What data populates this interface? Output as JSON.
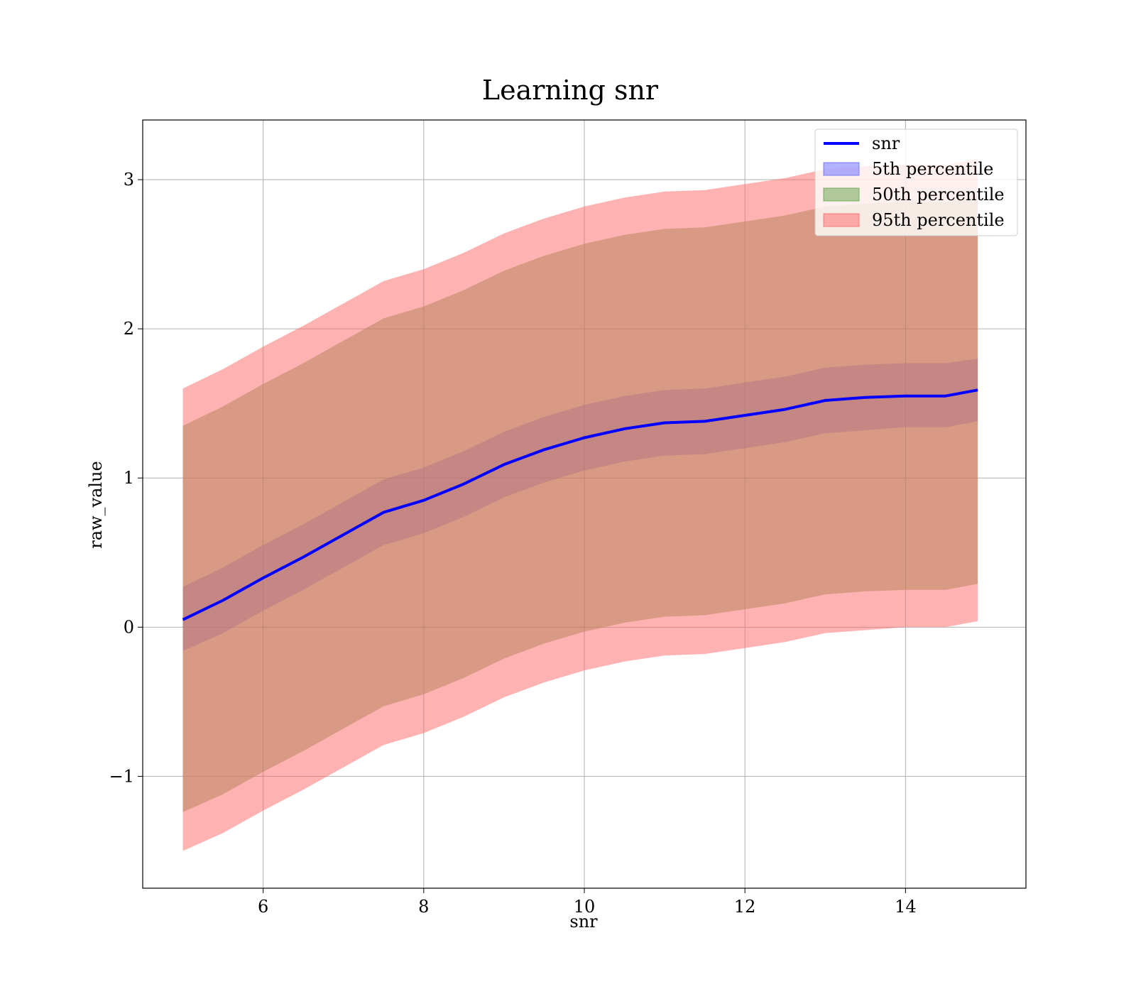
{
  "chart_data": {
    "type": "line",
    "title": "Learning snr",
    "xlabel": "snr",
    "ylabel": "raw_value",
    "xlim": [
      4.5,
      15.5
    ],
    "ylim": [
      -1.75,
      3.4
    ],
    "grid": true,
    "legend_position": "upper right",
    "x_ticks": [
      6,
      8,
      10,
      12,
      14
    ],
    "x_tick_labels": [
      "6",
      "8",
      "10",
      "12",
      "14"
    ],
    "y_ticks": [
      -1,
      0,
      1,
      2,
      3
    ],
    "y_tick_labels": [
      "−1",
      "0",
      "1",
      "2",
      "3"
    ],
    "x": [
      5.0,
      5.5,
      6.0,
      6.5,
      7.0,
      7.5,
      8.0,
      8.5,
      9.0,
      9.5,
      10.0,
      10.5,
      11.0,
      11.5,
      12.0,
      12.5,
      13.0,
      13.5,
      14.0,
      14.5,
      14.9
    ],
    "series": [
      {
        "name": "snr",
        "kind": "line",
        "color": "#0000ff",
        "values": [
          0.05,
          0.18,
          0.33,
          0.47,
          0.62,
          0.77,
          0.85,
          0.96,
          1.09,
          1.19,
          1.27,
          1.33,
          1.37,
          1.38,
          1.42,
          1.46,
          1.52,
          1.54,
          1.55,
          1.55,
          1.59
        ]
      },
      {
        "name": "5th percentile",
        "kind": "band",
        "color": "#6666ff",
        "lower": [
          -0.16,
          -0.04,
          0.11,
          0.25,
          0.4,
          0.55,
          0.63,
          0.74,
          0.87,
          0.97,
          1.05,
          1.11,
          1.15,
          1.16,
          1.2,
          1.24,
          1.3,
          1.32,
          1.34,
          1.34,
          1.38
        ],
        "upper": [
          0.27,
          0.4,
          0.55,
          0.69,
          0.84,
          0.99,
          1.07,
          1.18,
          1.31,
          1.41,
          1.49,
          1.55,
          1.59,
          1.6,
          1.64,
          1.68,
          1.74,
          1.76,
          1.77,
          1.77,
          1.8
        ]
      },
      {
        "name": "50th percentile",
        "kind": "band",
        "color": "#62a048",
        "lower": [
          -1.24,
          -1.12,
          -0.97,
          -0.83,
          -0.68,
          -0.53,
          -0.45,
          -0.34,
          -0.21,
          -0.11,
          -0.03,
          0.03,
          0.07,
          0.08,
          0.12,
          0.16,
          0.22,
          0.24,
          0.25,
          0.25,
          0.29
        ],
        "upper": [
          1.35,
          1.48,
          1.63,
          1.77,
          1.92,
          2.07,
          2.15,
          2.26,
          2.39,
          2.49,
          2.57,
          2.63,
          2.67,
          2.68,
          2.72,
          2.76,
          2.82,
          2.84,
          2.85,
          2.85,
          2.89
        ]
      },
      {
        "name": "95th percentile",
        "kind": "band",
        "color": "#ff6666",
        "lower": [
          -1.5,
          -1.38,
          -1.23,
          -1.09,
          -0.94,
          -0.79,
          -0.71,
          -0.6,
          -0.47,
          -0.37,
          -0.29,
          -0.23,
          -0.19,
          -0.18,
          -0.14,
          -0.1,
          -0.04,
          -0.02,
          0.0,
          0.0,
          0.04
        ],
        "upper": [
          1.6,
          1.73,
          1.88,
          2.02,
          2.17,
          2.32,
          2.4,
          2.51,
          2.64,
          2.74,
          2.82,
          2.88,
          2.92,
          2.93,
          2.97,
          3.01,
          3.07,
          3.09,
          3.1,
          3.1,
          3.14
        ]
      }
    ]
  }
}
